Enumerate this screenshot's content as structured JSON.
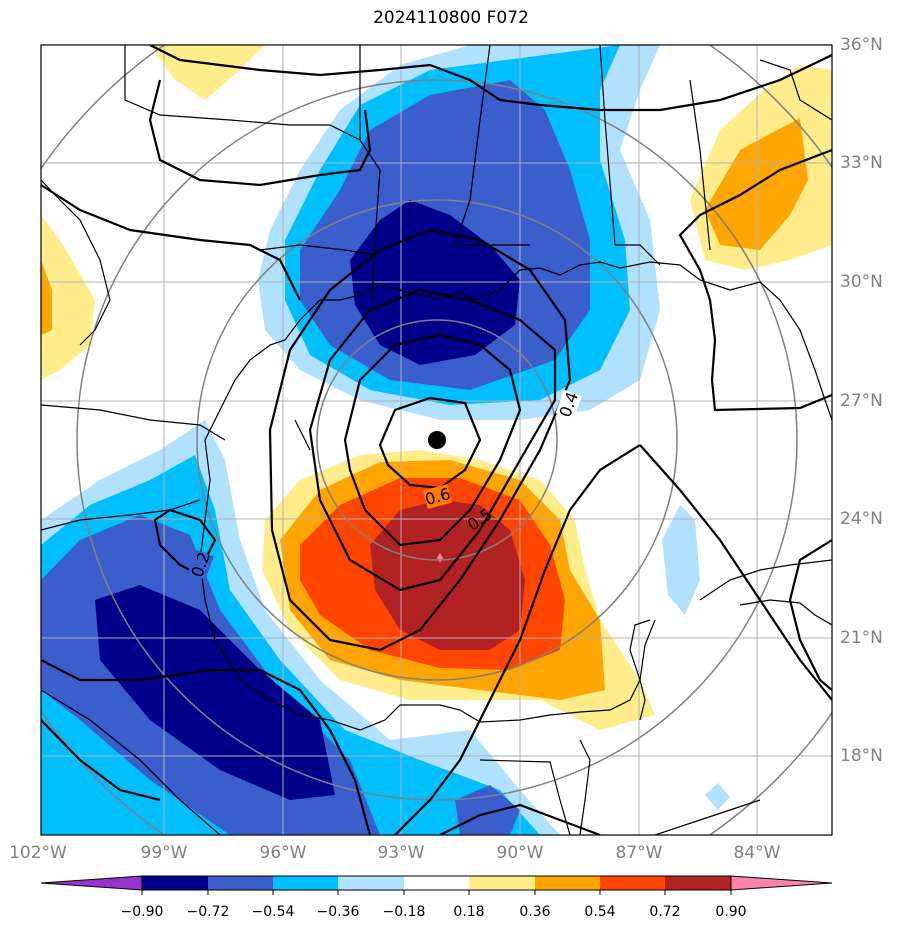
{
  "title": "2024110800 F072",
  "lat_labels": [
    "36°N",
    "33°N",
    "30°N",
    "27°N",
    "24°N",
    "21°N",
    "18°N"
  ],
  "lon_labels": [
    "102°W",
    "99°W",
    "96°W",
    "93°W",
    "90°W",
    "87°W",
    "84°W"
  ],
  "contour_labels": [
    "0.6",
    "0.5",
    "0.4",
    "0.2"
  ],
  "colorbar": {
    "ticks": [
      "−0.90",
      "−0.72",
      "−0.54",
      "−0.36",
      "−0.18",
      "0.18",
      "0.36",
      "0.54",
      "0.72",
      "0.90"
    ],
    "colors": [
      "#9932cc",
      "#00008b",
      "#3a5fcd",
      "#00bfff",
      "#b0e2ff",
      "#ffffff",
      "#ffec8b",
      "#ffa500",
      "#ff4500",
      "#b22222",
      "#ff82ab"
    ]
  },
  "chart_data": {
    "type": "map",
    "title": "2024110800 F072",
    "lon_range": [
      -102,
      -83
    ],
    "lat_range": [
      16,
      36
    ],
    "fill_levels": [
      -0.9,
      -0.72,
      -0.54,
      -0.36,
      -0.18,
      0.18,
      0.36,
      0.54,
      0.72,
      0.9
    ],
    "contour_levels_labeled": [
      0.6,
      0.5,
      0.4,
      0.2
    ],
    "storm_center": {
      "lon": -92.0,
      "lat": 26.0
    }
  }
}
